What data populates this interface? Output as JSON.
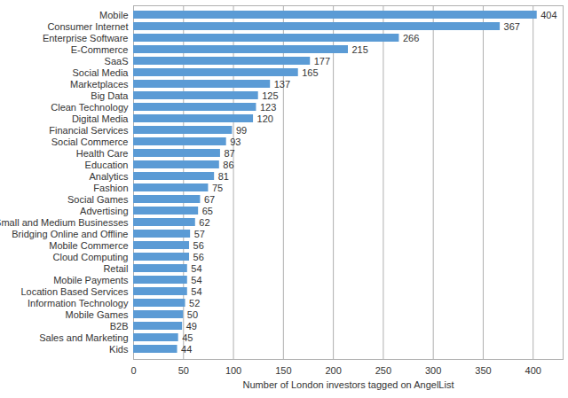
{
  "chart_data": {
    "type": "bar",
    "orientation": "horizontal",
    "categories": [
      "Mobile",
      "Consumer Internet",
      "Enterprise Software",
      "E-Commerce",
      "SaaS",
      "Social Media",
      "Marketplaces",
      "Big Data",
      "Clean Technology",
      "Digital Media",
      "Financial Services",
      "Social Commerce",
      "Health Care",
      "Education",
      "Analytics",
      "Fashion",
      "Social Games",
      "Advertising",
      "Small and Medium Businesses",
      "Bridging Online and Offline",
      "Mobile Commerce",
      "Cloud Computing",
      "Retail",
      "Mobile Payments",
      "Location Based Services",
      "Information Technology",
      "Mobile Games",
      "B2B",
      "Sales and Marketing",
      "Kids"
    ],
    "values": [
      404,
      367,
      266,
      215,
      177,
      165,
      137,
      125,
      123,
      120,
      99,
      93,
      87,
      86,
      81,
      75,
      67,
      65,
      62,
      57,
      56,
      56,
      54,
      54,
      54,
      52,
      50,
      49,
      45,
      44
    ],
    "color": "#5b9bd5",
    "xlabel": "Number of London investors tagged on AngelList",
    "xlim": [
      0,
      430
    ],
    "xticks": [
      0,
      50,
      100,
      150,
      200,
      250,
      300,
      350,
      400
    ],
    "grid": true,
    "data_labels": true
  }
}
